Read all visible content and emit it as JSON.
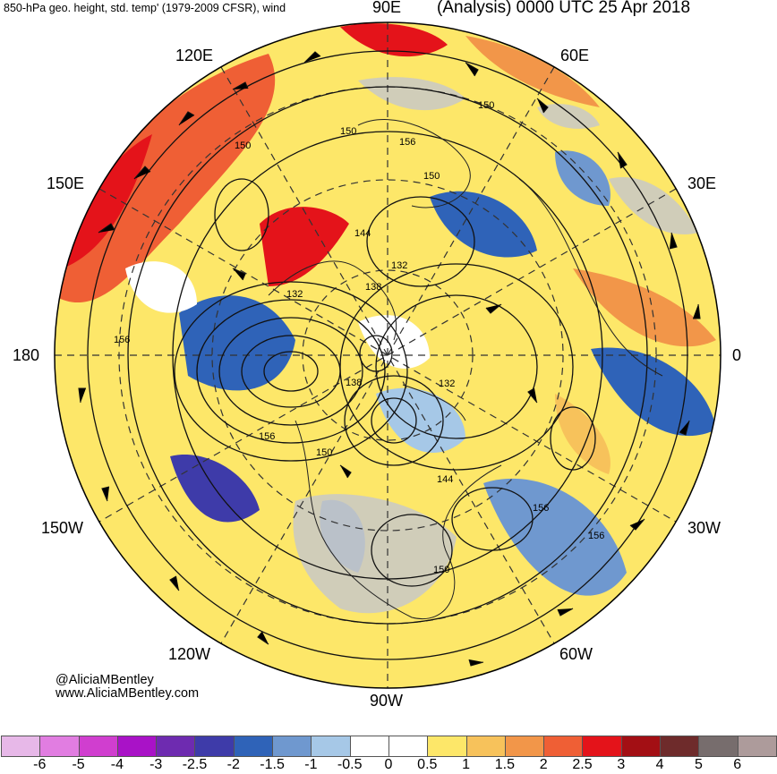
{
  "header": {
    "title_left": "850-hPa geo. height, std. temp' (1979-2009 CFSR), wind",
    "title_right": "(Analysis) 0000 UTC 25 Apr 2018"
  },
  "map": {
    "projection": "north-polar-stereographic",
    "longitude_labels": {
      "e90": "90E",
      "e60": "60E",
      "e120": "120E",
      "e150": "150E",
      "e30": "30E",
      "w180": "180",
      "zero": "0",
      "w150": "150W",
      "w30": "30W",
      "w120": "120W",
      "w60": "60W",
      "w90": "90W"
    },
    "contour_labels": [
      "150",
      "150",
      "156",
      "150",
      "150",
      "144",
      "132",
      "138",
      "132",
      "156",
      "138",
      "132",
      "156",
      "150",
      "144",
      "156",
      "156",
      "150"
    ],
    "land_color": "#c8c8c8",
    "ocean_neutral_color": "#ffffff"
  },
  "credit": {
    "handle": "@AliciaMBentley",
    "url": "www.AliciaMBentley.com"
  },
  "colorbar": {
    "colors": [
      "#e7b8e8",
      "#e17de1",
      "#d03ecf",
      "#a912c7",
      "#6e2bb0",
      "#3e3ba9",
      "#2f63b8",
      "#6f98cf",
      "#a6c8e7",
      "#ffffff",
      "#ffffff",
      "#fde769",
      "#f7c25b",
      "#f29649",
      "#ef5f35",
      "#e4131a",
      "#a30f14",
      "#6e2b2b",
      "#776d6d",
      "#ad9b9b"
    ],
    "labels": [
      "-6",
      "-5",
      "-4",
      "-3",
      "-2.5",
      "-2",
      "-1.5",
      "-1",
      "-0.5",
      "0",
      "0.5",
      "1",
      "1.5",
      "2",
      "2.5",
      "3",
      "4",
      "5",
      "6"
    ]
  }
}
